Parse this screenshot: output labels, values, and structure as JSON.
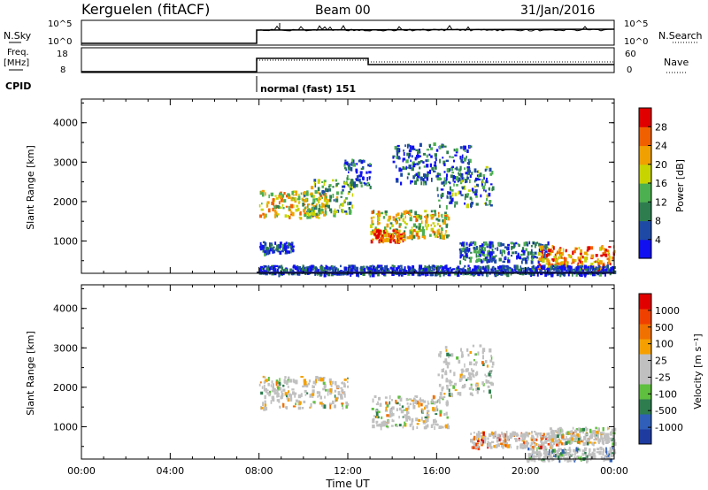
{
  "header": {
    "station": "Kerguelen (fitACF)",
    "beam": "Beam 00",
    "date": "31/Jan/2016"
  },
  "strip": {
    "nsky_label": "N.Sky",
    "nsky_ticks": [
      "10^5",
      "10^0"
    ],
    "nsearch_label": "N.Search",
    "nsearch_ticks": [
      "10^5",
      "10^0"
    ],
    "freq_label": "Freq.",
    "freq_unit": "[MHz]",
    "freq_ticks": [
      "18",
      "8"
    ],
    "nave_label": "Nave",
    "nave_ticks": [
      "60",
      "0"
    ],
    "cpid_label": "CPID",
    "cpid_value": "normal (fast) 151"
  },
  "colors": {
    "power": [
      "#1010f0",
      "#1e4aa6",
      "#2e7d4f",
      "#4caf50",
      "#c8d400",
      "#f0a000",
      "#f06000",
      "#e00000"
    ],
    "velocity": [
      "#1e3ca0",
      "#2f5fb8",
      "#2e7d4f",
      "#5fbf3f",
      "#c0c0c0",
      "#c0c0c0",
      "#f5a000",
      "#f07000",
      "#f04000",
      "#e00000"
    ]
  },
  "chart_data": [
    {
      "type": "heatmap",
      "panel": "power",
      "ylabel": "Slant Range [km]",
      "yticks": [
        "4000",
        "3000",
        "2000",
        "1000"
      ],
      "ylim": [
        180,
        4600
      ],
      "xlim": [
        0,
        24
      ],
      "colorbar_label": "Power [dB]",
      "colorbar_ticks": [
        "28",
        "24",
        "20",
        "16",
        "12",
        "8",
        "4"
      ],
      "colorbar_range": [
        0,
        32
      ],
      "echo_bands": [
        {
          "t0": 8.0,
          "t1": 11.0,
          "r0": 1600,
          "r1": 2300,
          "level": 0.6
        },
        {
          "t0": 10.0,
          "t1": 12.2,
          "r0": 1700,
          "r1": 2600,
          "level": 0.4
        },
        {
          "t0": 11.8,
          "t1": 13.0,
          "r0": 2400,
          "r1": 3100,
          "level": 0.2
        },
        {
          "t0": 13.0,
          "t1": 16.5,
          "r0": 1100,
          "r1": 1800,
          "level": 0.55
        },
        {
          "t0": 13.0,
          "t1": 14.5,
          "r0": 1000,
          "r1": 1300,
          "level": 0.85
        },
        {
          "t0": 14.0,
          "t1": 17.5,
          "r0": 2500,
          "r1": 3500,
          "level": 0.2
        },
        {
          "t0": 16.0,
          "t1": 18.5,
          "r0": 1900,
          "r1": 2900,
          "level": 0.3
        },
        {
          "t0": 8.0,
          "t1": 9.5,
          "r0": 700,
          "r1": 1000,
          "level": 0.15
        },
        {
          "t0": 17.0,
          "t1": 21.0,
          "r0": 500,
          "r1": 1000,
          "level": 0.25
        },
        {
          "t0": 20.5,
          "t1": 24.0,
          "r0": 300,
          "r1": 900,
          "level": 0.75
        },
        {
          "t0": 8.0,
          "t1": 24.0,
          "r0": 180,
          "r1": 400,
          "level": 0.15
        }
      ]
    },
    {
      "type": "heatmap",
      "panel": "velocity",
      "xlabel": "Time UT",
      "ylabel": "Slant Range [km]",
      "yticks": [
        "4000",
        "3000",
        "2000",
        "1000"
      ],
      "ylim": [
        180,
        4600
      ],
      "xlim": [
        0,
        24
      ],
      "xticks": [
        "00:00",
        "04:00",
        "08:00",
        "12:00",
        "16:00",
        "20:00",
        "00:00"
      ],
      "colorbar_label": "Velocity [m s⁻¹]",
      "colorbar_ticks": [
        "1000",
        "500",
        "100",
        "25",
        "-25",
        "-100",
        "-500",
        "-1000"
      ],
      "echo_bands": [
        {
          "t0": 8.0,
          "t1": 12.0,
          "r0": 1500,
          "r1": 2300,
          "level": 0.5
        },
        {
          "t0": 13.0,
          "t1": 16.5,
          "r0": 1000,
          "r1": 1800,
          "level": 0.5
        },
        {
          "t0": 16.0,
          "t1": 18.5,
          "r0": 1800,
          "r1": 3100,
          "level": 0.5
        },
        {
          "t0": 17.5,
          "t1": 21.5,
          "r0": 500,
          "r1": 900,
          "level": 0.75
        },
        {
          "t0": 20.0,
          "t1": 24.0,
          "r0": 180,
          "r1": 500,
          "level": 0.35
        },
        {
          "t0": 21.0,
          "t1": 24.0,
          "r0": 600,
          "r1": 1000,
          "level": 0.5
        }
      ]
    }
  ]
}
